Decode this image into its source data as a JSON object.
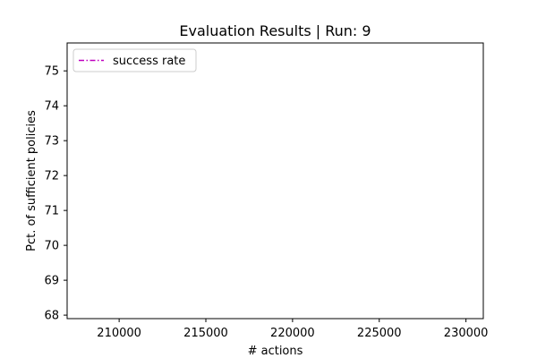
{
  "chart_data": {
    "type": "line",
    "title": "Evaluation Results | Run: 9",
    "xlabel": "# actions",
    "ylabel": "Pct. of sufficient policies",
    "xlim": [
      207000,
      231000
    ],
    "ylim": [
      67.9,
      75.8
    ],
    "x_ticks": [
      210000,
      215000,
      220000,
      225000,
      230000
    ],
    "x_tick_labels": [
      "210000",
      "215000",
      "220000",
      "225000",
      "230000"
    ],
    "y_ticks": [
      68,
      69,
      70,
      71,
      72,
      73,
      74,
      75
    ],
    "y_tick_labels": [
      "68",
      "69",
      "70",
      "71",
      "72",
      "73",
      "74",
      "75"
    ],
    "grid": false,
    "legend_position": "top-left",
    "series": [
      {
        "name": "success rate",
        "color": "#bf00bf",
        "line_style": "dash-dot",
        "x": [],
        "y": []
      }
    ]
  }
}
